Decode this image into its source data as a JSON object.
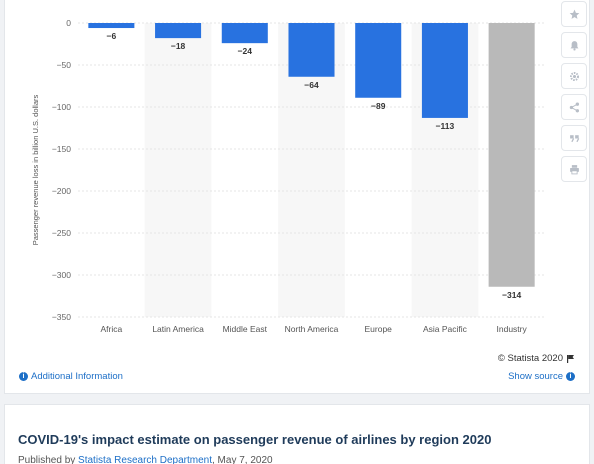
{
  "chart_data": {
    "type": "bar",
    "categories": [
      "Africa",
      "Latin America",
      "Middle East",
      "North America",
      "Europe",
      "Asia Pacific",
      "Industry"
    ],
    "values": [
      -6,
      -18,
      -24,
      -64,
      -89,
      -113,
      -314
    ],
    "value_labels": [
      "−6",
      "−18",
      "−24",
      "−64",
      "−89",
      "−113",
      "−314"
    ],
    "ylabel": "Passenger revenue loss in billion U.S. dollars",
    "ylim": [
      -350,
      0
    ],
    "yticks": [
      0,
      -50,
      -100,
      -150,
      -200,
      -250,
      -300,
      -350
    ],
    "ytick_labels": [
      "0",
      "−50",
      "−100",
      "−150",
      "−200",
      "−250",
      "−300",
      "−350"
    ],
    "grid": true,
    "colors": {
      "regional": "#2872e0",
      "industry": "#b9b9b9",
      "band": "#f7f7f7"
    }
  },
  "credit": "© Statista 2020",
  "links": {
    "additional_info": "Additional Information",
    "show_source": "Show source"
  },
  "toolbar": [
    "star-icon",
    "bell-icon",
    "gear-icon",
    "share-icon",
    "quote-icon",
    "print-icon"
  ],
  "info": {
    "title": "COVID-19's impact estimate on passenger revenue of airlines by region 2020",
    "published_prefix": "Published by",
    "author": "Statista Research Department",
    "date": ", May 7, 2020"
  }
}
